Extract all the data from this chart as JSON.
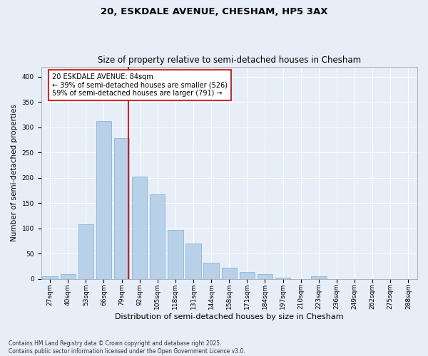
{
  "title1": "20, ESKDALE AVENUE, CHESHAM, HP5 3AX",
  "title2": "Size of property relative to semi-detached houses in Chesham",
  "xlabel": "Distribution of semi-detached houses by size in Chesham",
  "ylabel": "Number of semi-detached properties",
  "categories": [
    "27sqm",
    "40sqm",
    "53sqm",
    "66sqm",
    "79sqm",
    "92sqm",
    "105sqm",
    "118sqm",
    "131sqm",
    "144sqm",
    "158sqm",
    "171sqm",
    "184sqm",
    "197sqm",
    "210sqm",
    "223sqm",
    "236sqm",
    "249sqm",
    "262sqm",
    "275sqm",
    "288sqm"
  ],
  "values": [
    5,
    10,
    108,
    312,
    278,
    202,
    167,
    97,
    70,
    32,
    22,
    14,
    10,
    3,
    0,
    5,
    0,
    0,
    0,
    0,
    0
  ],
  "bar_color": "#b8d0e8",
  "bar_edge_color": "#7aafd4",
  "bar_width": 0.85,
  "vline_color": "#cc0000",
  "annotation_text": "20 ESKDALE AVENUE: 84sqm\n← 39% of semi-detached houses are smaller (526)\n59% of semi-detached houses are larger (791) →",
  "annotation_box_color": "#ffffff",
  "annotation_box_edge": "#cc0000",
  "ylim": [
    0,
    420
  ],
  "yticks": [
    0,
    50,
    100,
    150,
    200,
    250,
    300,
    350,
    400
  ],
  "background_color": "#e8eef8",
  "plot_bg_color": "#e8eef8",
  "footnote": "Contains HM Land Registry data © Crown copyright and database right 2025.\nContains public sector information licensed under the Open Government Licence v3.0.",
  "title1_fontsize": 9.5,
  "title2_fontsize": 8.5,
  "xlabel_fontsize": 8,
  "ylabel_fontsize": 7.5,
  "tick_fontsize": 6.5,
  "annotation_fontsize": 7,
  "footnote_fontsize": 5.5
}
